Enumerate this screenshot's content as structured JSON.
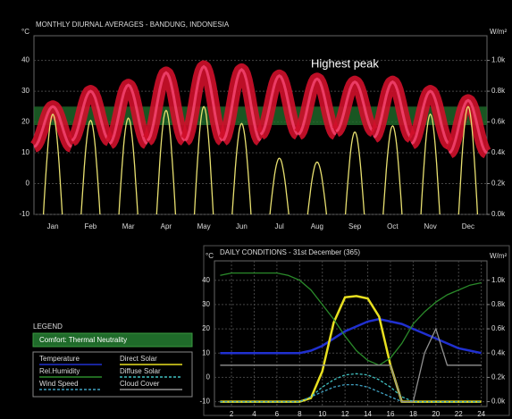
{
  "chart_data": [
    {
      "type": "diurnal",
      "title": "MONTHLY DIURNAL AVERAGES - BANDUNG, INDONESIA",
      "ylabel": "°C",
      "y2label": "W/m²",
      "categories": [
        "Jan",
        "Feb",
        "Mar",
        "Apr",
        "May",
        "Jun",
        "Jul",
        "Aug",
        "Sep",
        "Oct",
        "Nov",
        "Dec"
      ],
      "temperature_min": [
        12,
        14,
        13,
        14,
        14,
        14,
        16,
        16,
        17,
        15,
        13,
        10
      ],
      "temperature_max": [
        25,
        30,
        32,
        36,
        38,
        37,
        35,
        34,
        33,
        33,
        30,
        27
      ],
      "temperature_color": "#d0102a",
      "solar_peak": [
        650,
        610,
        625,
        675,
        700,
        590,
        365,
        340,
        535,
        575,
        650,
        700
      ],
      "solar_color": "#e8e070",
      "comfort": {
        "name": "Comfort: Thermal Neutrality",
        "range": [
          19,
          25
        ],
        "color": "#1f6b2a"
      },
      "annotation": "Highest peak",
      "ylim": [
        -10,
        48
      ],
      "yticks": [
        -10,
        0,
        10,
        20,
        30,
        40
      ],
      "y2lim": [
        0,
        1160
      ],
      "y2ticks": [
        {
          "value": 0,
          "label": "0.0k"
        },
        {
          "value": 200,
          "label": "0.2k"
        },
        {
          "value": 400,
          "label": "0.4k"
        },
        {
          "value": 600,
          "label": "0.6k"
        },
        {
          "value": 800,
          "label": "0.8k"
        },
        {
          "value": 1000,
          "label": "1.0k"
        }
      ],
      "grid": true
    },
    {
      "type": "line",
      "title": "DAILY CONDITIONS - 31st December (365)",
      "ylabel": "°C",
      "y2label": "W/m²",
      "x": [
        1,
        2,
        3,
        4,
        5,
        6,
        7,
        8,
        9,
        10,
        11,
        12,
        13,
        14,
        15,
        16,
        17,
        18,
        19,
        20,
        21,
        22,
        23,
        24
      ],
      "series": [
        {
          "name": "Temperature",
          "color": "#2030d0",
          "values": [
            10,
            10,
            10,
            10,
            10,
            10,
            10,
            10,
            11,
            13,
            16,
            19,
            21,
            23,
            24,
            23,
            22,
            20,
            18,
            16,
            14,
            12,
            11,
            10
          ]
        },
        {
          "name": "Direct Solar",
          "color": "#e8e020",
          "axis": "y2",
          "values": [
            0,
            0,
            0,
            0,
            0,
            0,
            0,
            0,
            30,
            250,
            650,
            860,
            870,
            850,
            700,
            300,
            0,
            0,
            0,
            0,
            0,
            0,
            0,
            0
          ]
        },
        {
          "name": "Rel.Humidity",
          "color": "#2a8a2a",
          "values": [
            42,
            43,
            43,
            43,
            43,
            43,
            42,
            40,
            36,
            30,
            24,
            17,
            11,
            7,
            5,
            8,
            14,
            22,
            27,
            31,
            34,
            36,
            38,
            39
          ]
        },
        {
          "name": "Diffuse Solar",
          "color": "#40c0c0",
          "axis": "y2",
          "dash": true,
          "values": [
            0,
            0,
            0,
            0,
            0,
            0,
            0,
            0,
            40,
            120,
            180,
            220,
            230,
            220,
            180,
            120,
            40,
            0,
            0,
            0,
            0,
            0,
            0,
            0
          ]
        },
        {
          "name": "Wind Speed",
          "color": "#40a0c0",
          "dash": true,
          "values": [
            -10,
            -10,
            -10,
            -10,
            -10,
            -10,
            -10,
            -10,
            -8,
            -6,
            -4,
            -3,
            -3,
            -4,
            -6,
            -8,
            -10,
            -10,
            -10,
            -10,
            -10,
            -10,
            -10,
            -10
          ]
        },
        {
          "name": "Cloud Cover",
          "color": "#909090",
          "axis": "y2",
          "values": [
            300,
            300,
            300,
            300,
            300,
            300,
            300,
            300,
            300,
            300,
            300,
            300,
            300,
            300,
            300,
            300,
            0,
            0,
            400,
            600,
            300,
            300,
            300,
            300
          ]
        }
      ],
      "xlim": [
        0.5,
        24.5
      ],
      "xticks": [
        2,
        4,
        6,
        8,
        10,
        12,
        14,
        16,
        18,
        20,
        22,
        24
      ],
      "ylim": [
        -12,
        48
      ],
      "yticks": [
        -10,
        0,
        10,
        20,
        30,
        40
      ],
      "y2lim": [
        -40,
        1160
      ],
      "y2ticks": [
        {
          "value": 0,
          "label": "0.0k"
        },
        {
          "value": 200,
          "label": "0.2k"
        },
        {
          "value": 400,
          "label": "0.4k"
        },
        {
          "value": 600,
          "label": "0.6k"
        },
        {
          "value": 800,
          "label": "0.8k"
        },
        {
          "value": 1000,
          "label": "1.0k"
        }
      ],
      "grid": true
    }
  ],
  "legend_title": "LEGEND"
}
